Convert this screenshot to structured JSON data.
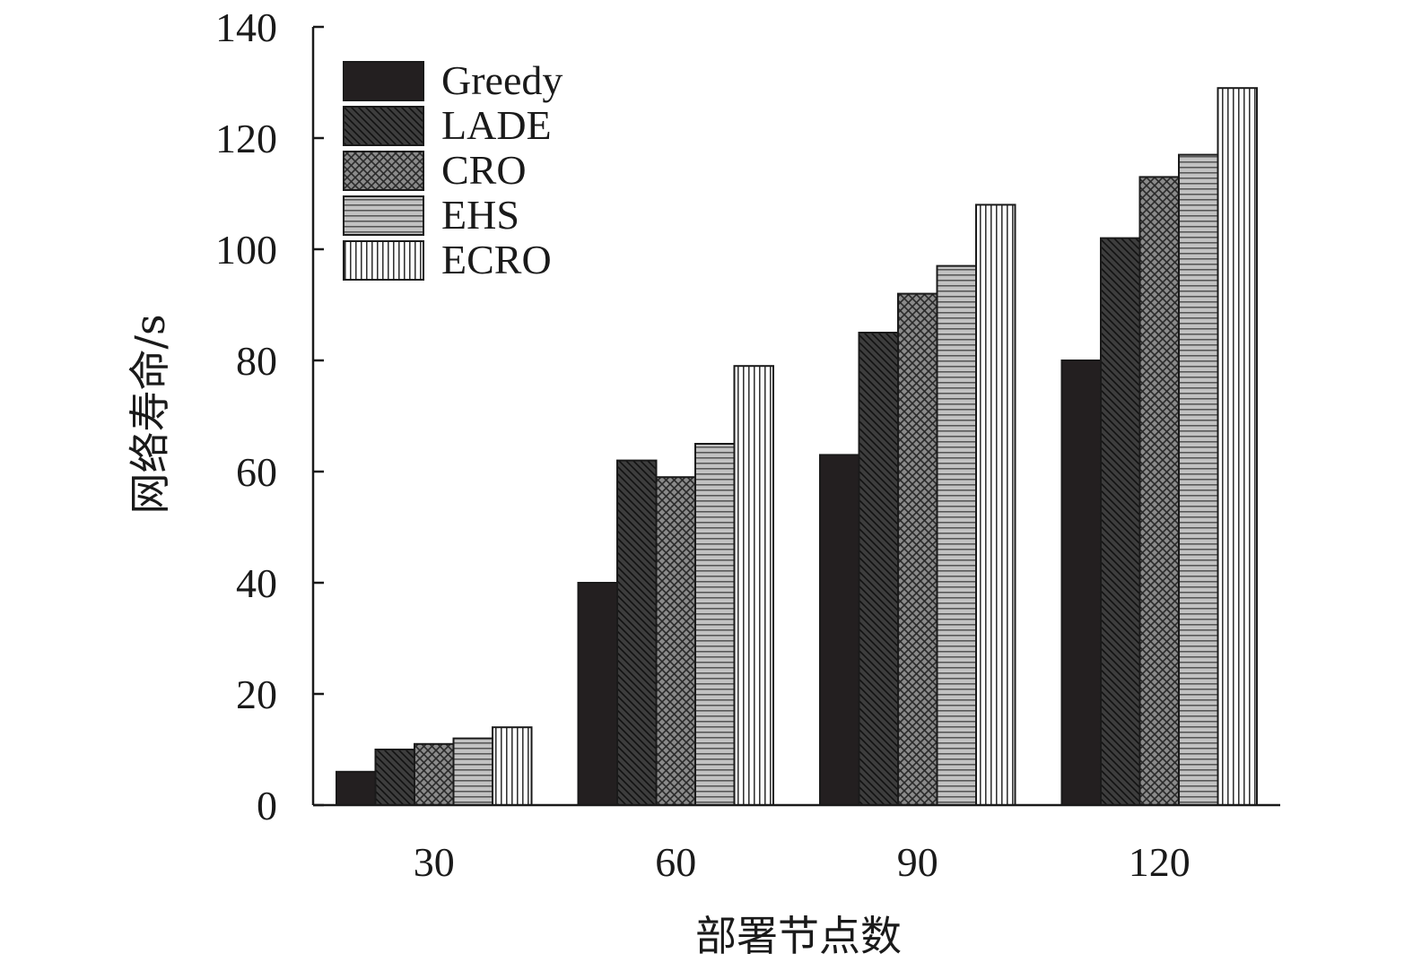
{
  "chart_data": {
    "type": "bar",
    "xlabel": "部署节点数",
    "ylabel": "网络寿命/s",
    "categories": [
      "30",
      "60",
      "90",
      "120"
    ],
    "ylim": [
      0,
      140
    ],
    "yticks": [
      0,
      20,
      40,
      60,
      80,
      100,
      120,
      140
    ],
    "grid": false,
    "legend_position": "top-left",
    "series": [
      {
        "name": "Greedy",
        "values": [
          6,
          40,
          63,
          80
        ],
        "pattern": "solid",
        "color": "#231f20"
      },
      {
        "name": "LADE",
        "values": [
          10,
          62,
          85,
          102
        ],
        "pattern": "diagonal",
        "color": "#3d3d3d"
      },
      {
        "name": "CRO",
        "values": [
          11,
          59,
          92,
          113
        ],
        "pattern": "crosshatch",
        "color": "#7a7a7a"
      },
      {
        "name": "EHS",
        "values": [
          12,
          65,
          97,
          117
        ],
        "pattern": "horizontal",
        "color": "#b4b4b4"
      },
      {
        "name": "ECRO",
        "values": [
          14,
          79,
          108,
          129
        ],
        "pattern": "vertical",
        "color": "#ffffff"
      }
    ]
  }
}
